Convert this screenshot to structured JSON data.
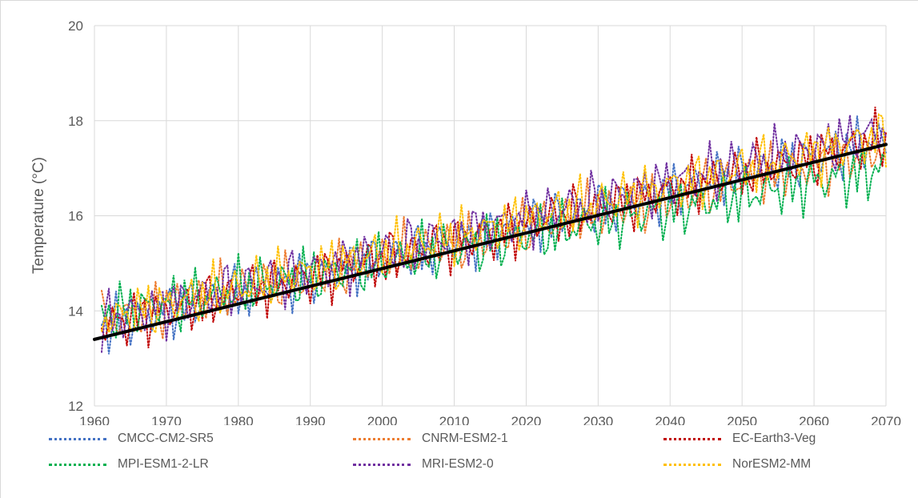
{
  "chart_data": {
    "type": "line",
    "title": "",
    "xlabel": "",
    "ylabel": "Temperature (°C)",
    "xlim": [
      1960,
      2070
    ],
    "ylim": [
      12,
      20
    ],
    "x_ticks": [
      1960,
      1970,
      1980,
      1990,
      2000,
      2010,
      2020,
      2030,
      2040,
      2050,
      2060,
      2070
    ],
    "y_ticks": [
      12,
      14,
      16,
      18,
      20
    ],
    "grid": true,
    "legend_position": "bottom",
    "series": [
      {
        "name": "CMCC-CM2-SR5",
        "color": "#4472c4",
        "style": "dotted",
        "x_start": 1961,
        "x_end": 2070,
        "trend_start": 13.7,
        "trend_end": 17.6,
        "amplitude": 0.55,
        "phase": 0.0
      },
      {
        "name": "CNRM-ESM2-1",
        "color": "#ed7d31",
        "style": "dotted",
        "x_start": 1961,
        "x_end": 2070,
        "trend_start": 13.8,
        "trend_end": 17.4,
        "amplitude": 0.55,
        "phase": 1.1
      },
      {
        "name": "EC-Earth3-Veg",
        "color": "#c00000",
        "style": "dotted",
        "x_start": 1961,
        "x_end": 2070,
        "trend_start": 13.7,
        "trend_end": 17.6,
        "amplitude": 0.55,
        "phase": 2.2
      },
      {
        "name": "MPI-ESM1-2-LR",
        "color": "#00b050",
        "style": "dotted",
        "x_start": 1961,
        "x_end": 2070,
        "trend_start": 13.9,
        "trend_end": 17.0,
        "amplitude": 0.6,
        "phase": 3.3
      },
      {
        "name": "MRI-ESM2-0",
        "color": "#7030a0",
        "style": "dotted",
        "x_start": 1961,
        "x_end": 2070,
        "trend_start": 13.8,
        "trend_end": 17.8,
        "amplitude": 0.55,
        "phase": 4.4
      },
      {
        "name": "NorESM2-MM",
        "color": "#ffc000",
        "style": "dotted",
        "x_start": 1961,
        "x_end": 2070,
        "trend_start": 13.8,
        "trend_end": 17.7,
        "amplitude": 0.55,
        "phase": 5.5
      }
    ],
    "trendline": {
      "x": [
        1960,
        2070
      ],
      "y": [
        13.4,
        17.5
      ],
      "color": "#000000"
    }
  }
}
